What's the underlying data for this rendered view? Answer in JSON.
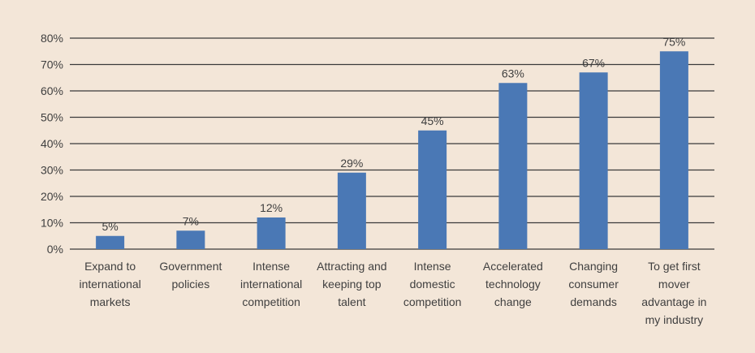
{
  "chart_data": {
    "type": "bar",
    "title": "",
    "xlabel": "",
    "ylabel": "",
    "ylim": [
      0,
      80
    ],
    "yticks": [
      0,
      10,
      20,
      30,
      40,
      50,
      60,
      70,
      80
    ],
    "ytick_labels": [
      "0%",
      "10%",
      "20%",
      "30%",
      "40%",
      "50%",
      "60%",
      "70%",
      "80%"
    ],
    "grid": true,
    "legend": "none",
    "categories": [
      [
        "Expand to",
        "international",
        "markets"
      ],
      [
        "Government",
        "policies"
      ],
      [
        "Intense",
        "international",
        "competition"
      ],
      [
        "Attracting and",
        "keeping top",
        "talent"
      ],
      [
        "Intense",
        "domestic",
        "competition"
      ],
      [
        "Accelerated",
        "technology",
        "change"
      ],
      [
        "Changing",
        "consumer",
        "demands"
      ],
      [
        "To get first",
        "mover",
        "advantage in",
        "my industry"
      ]
    ],
    "values": [
      5,
      7,
      12,
      29,
      45,
      63,
      67,
      75
    ],
    "data_labels": [
      "5%",
      "7%",
      "12%",
      "29%",
      "45%",
      "63%",
      "67%",
      "75%"
    ],
    "bar_color": "#4A78B5",
    "grid_color": "#3A3A3A",
    "text_color": "#3F3F3F",
    "background_color": "#F3E6D8"
  }
}
